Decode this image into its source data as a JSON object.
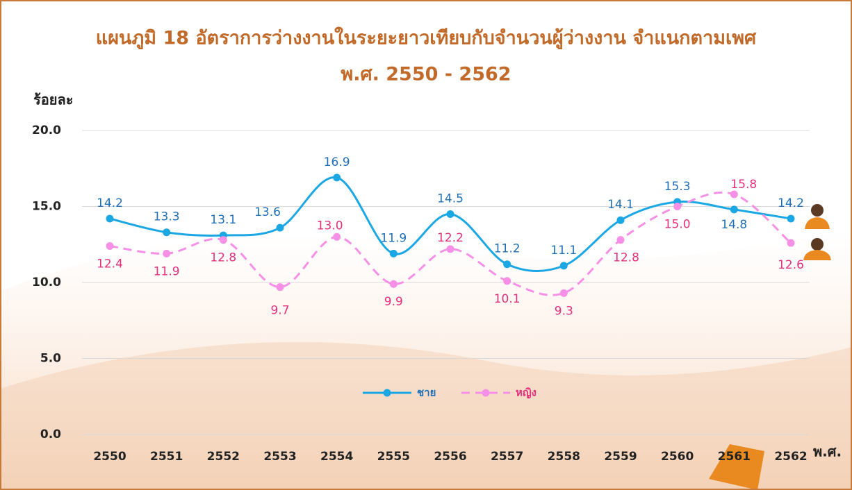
{
  "chart_data": {
    "type": "line",
    "title": "แผนภูมิ 18  อัตราการว่างงานในระยะยาวเทียบกับจำนวนผู้ว่างงาน  จำแนกตามเพศ",
    "subtitle": "พ.ศ. 2550 - 2562",
    "y_label": "ร้อยละ",
    "x_label": "พ.ศ.",
    "categories": [
      "2550",
      "2551",
      "2552",
      "2553",
      "2554",
      "2555",
      "2556",
      "2557",
      "2558",
      "2559",
      "2560",
      "2561",
      "2562"
    ],
    "series": [
      {
        "name": "ชาย",
        "color": "#1aa7e4",
        "label_color": "#1f6fb6",
        "dashed": false,
        "values": [
          14.2,
          13.3,
          13.1,
          13.6,
          16.9,
          11.9,
          14.5,
          11.2,
          11.1,
          14.1,
          15.3,
          14.8,
          14.2
        ],
        "value_labels": [
          "14.2",
          "13.3",
          "13.1",
          "13.6",
          "16.9",
          "11.9",
          "14.5",
          "11.2",
          "11.1",
          "14.1",
          "15.3",
          "14.8",
          "14.2"
        ]
      },
      {
        "name": "หญิง",
        "color": "#f590e6",
        "label_color": "#e2307c",
        "dashed": true,
        "values": [
          12.4,
          11.9,
          12.8,
          9.7,
          13.0,
          9.9,
          12.2,
          10.1,
          9.3,
          12.8,
          15.0,
          15.8,
          12.6
        ],
        "value_labels": [
          "12.4",
          "11.9",
          "12.8",
          "9.7",
          "13.0",
          "9.9",
          "12.2",
          "10.1",
          "9.3",
          "12.8",
          "15.0",
          "15.8",
          "12.6"
        ]
      }
    ],
    "ylim": [
      0,
      20
    ],
    "yticks": [
      {
        "value": 0,
        "label": "0.0"
      },
      {
        "value": 5,
        "label": "5.0"
      },
      {
        "value": 10,
        "label": "10.0"
      },
      {
        "value": 15,
        "label": "15.0"
      },
      {
        "value": 20,
        "label": "20.0"
      }
    ],
    "grid": true
  }
}
